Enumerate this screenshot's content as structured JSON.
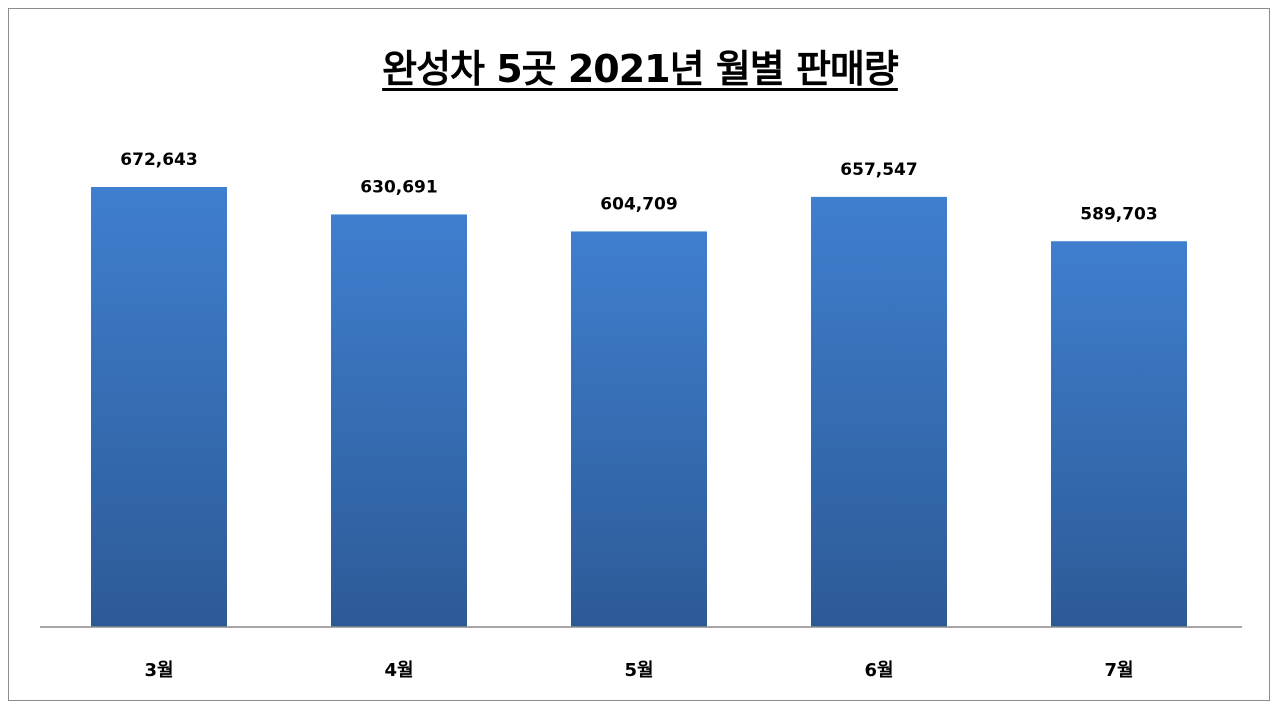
{
  "chart_data": {
    "type": "bar",
    "title": "완성차 5곳 2021년 월별 판매량",
    "xlabel": "",
    "ylabel": "",
    "categories": [
      "3월",
      "4월",
      "5월",
      "6월",
      "7월"
    ],
    "values": [
      672643,
      630691,
      604709,
      657547,
      589703
    ],
    "data_labels": [
      "672,643",
      "630,691",
      "604,709",
      "657,547",
      "589,703"
    ],
    "ylim": [
      390000,
      700000
    ],
    "grid": false,
    "legend": "none",
    "bar_color_top": "#3f7fcf",
    "bar_color_bottom": "#2d5a96"
  }
}
